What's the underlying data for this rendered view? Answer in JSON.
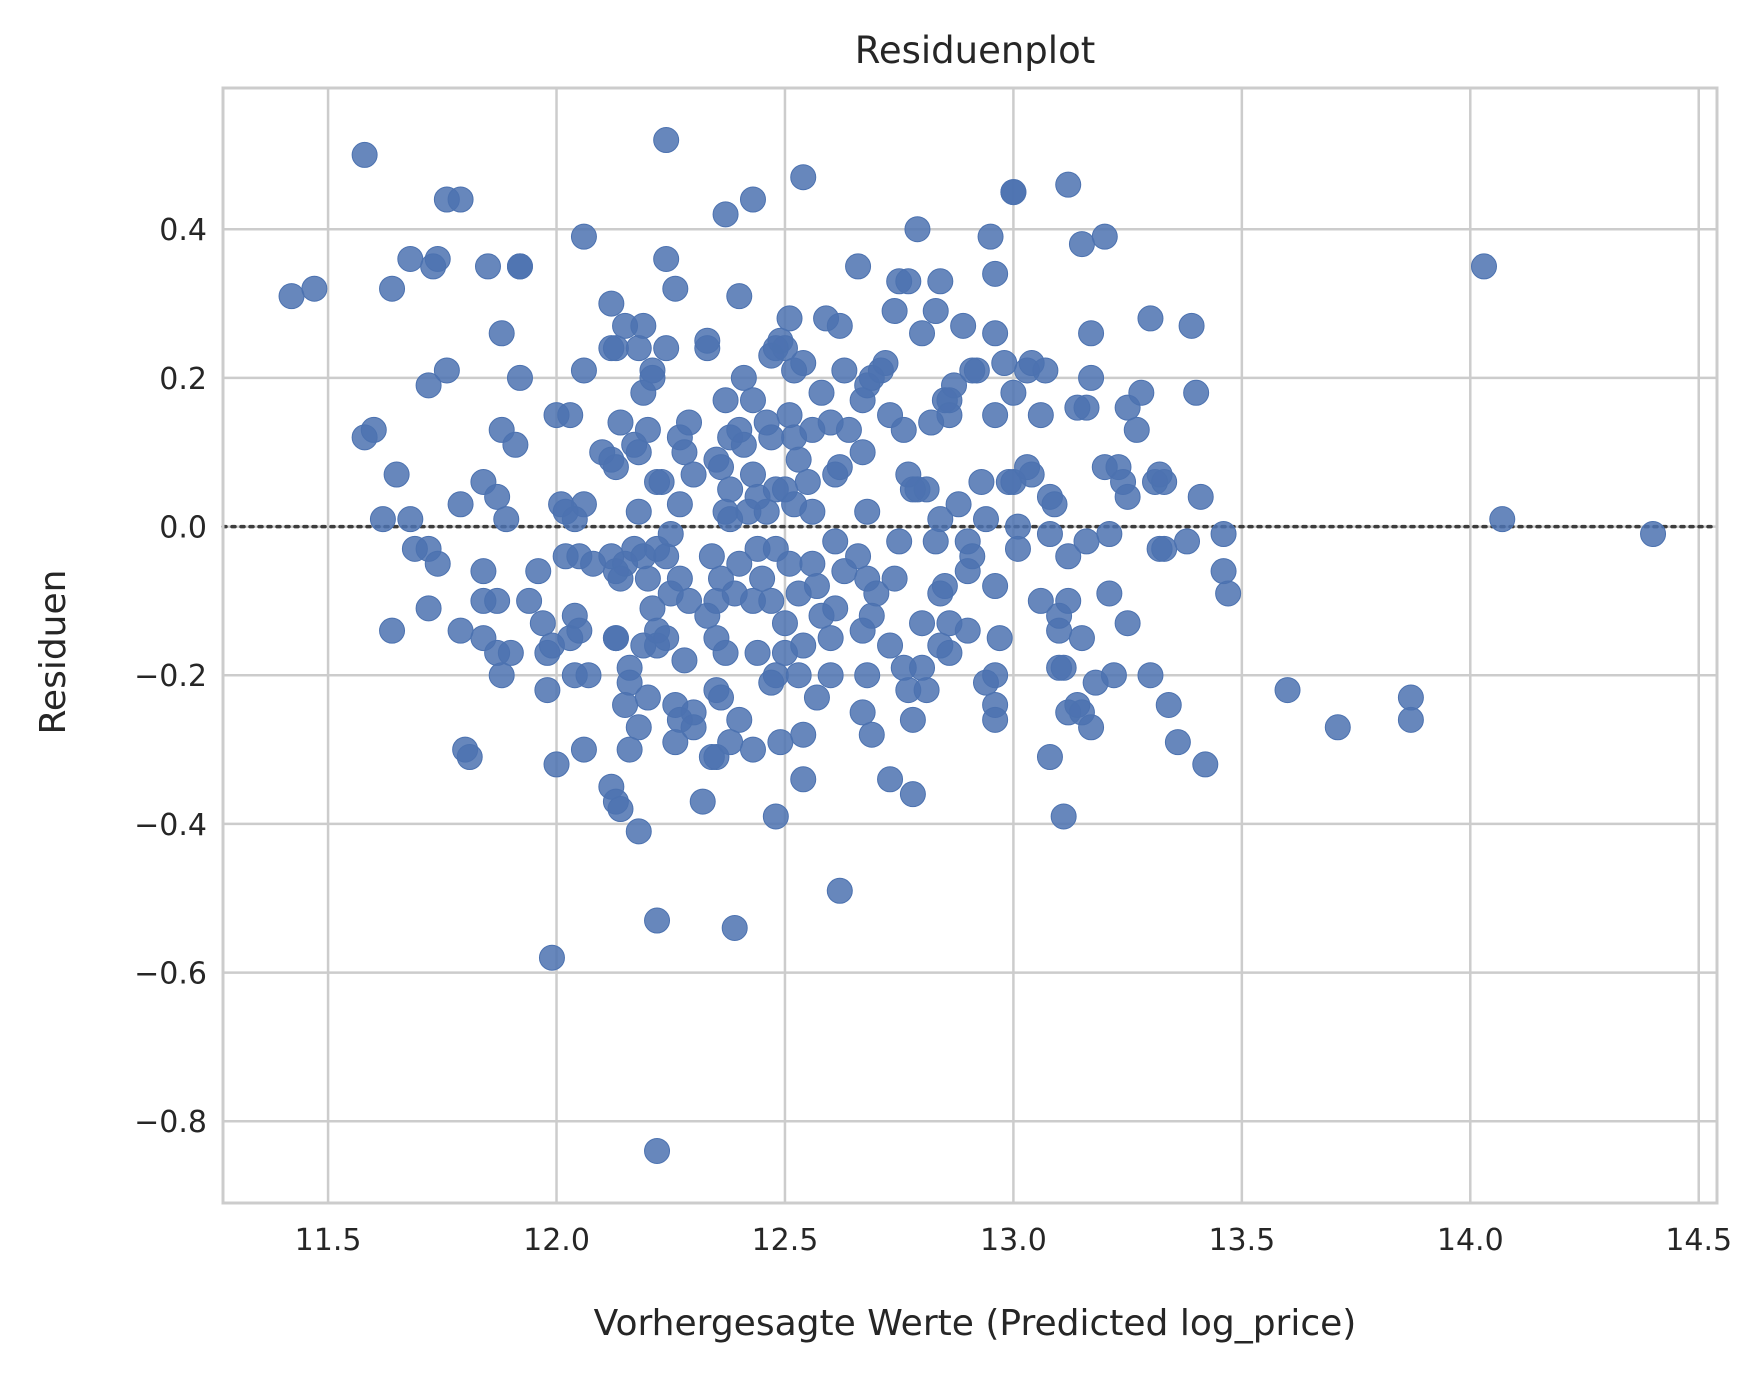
{
  "chart_data": {
    "type": "scatter",
    "title": "Residuenplot",
    "xlabel": "Vorhergesagte Werte (Predicted log_price)",
    "ylabel": "Residuen",
    "xlim": [
      11.27,
      14.54
    ],
    "ylim": [
      -0.91,
      0.59
    ],
    "xticks": [
      11.5,
      12.0,
      12.5,
      13.0,
      13.5,
      14.0,
      14.5
    ],
    "xtick_labels": [
      "11.5",
      "12.0",
      "12.5",
      "13.0",
      "13.5",
      "14.0",
      "14.5"
    ],
    "yticks": [
      -0.8,
      -0.6,
      -0.4,
      -0.2,
      0.0,
      0.2,
      0.4
    ],
    "ytick_labels": [
      "−0.8",
      "−0.6",
      "−0.4",
      "−0.2",
      "0.0",
      "0.2",
      "0.4"
    ],
    "grid": true,
    "reference_line": {
      "y": 0.0,
      "style": "dotted",
      "color": "#3d3d3d"
    },
    "point_color": "#4c72b0",
    "points": [
      [
        11.58,
        0.5
      ],
      [
        11.42,
        0.31
      ],
      [
        11.47,
        0.32
      ],
      [
        11.76,
        0.44
      ],
      [
        11.79,
        0.44
      ],
      [
        11.68,
        0.36
      ],
      [
        11.73,
        0.35
      ],
      [
        11.74,
        0.36
      ],
      [
        11.64,
        0.32
      ],
      [
        11.85,
        0.35
      ],
      [
        11.92,
        0.35
      ],
      [
        11.92,
        0.35
      ],
      [
        11.88,
        0.26
      ],
      [
        11.76,
        0.21
      ],
      [
        11.72,
        0.19
      ],
      [
        11.92,
        0.2
      ],
      [
        11.58,
        0.12
      ],
      [
        11.6,
        0.13
      ],
      [
        11.88,
        0.13
      ],
      [
        11.91,
        0.11
      ],
      [
        11.65,
        0.07
      ],
      [
        11.84,
        0.06
      ],
      [
        11.87,
        0.04
      ],
      [
        11.79,
        0.03
      ],
      [
        11.89,
        0.01
      ],
      [
        11.62,
        0.01
      ],
      [
        11.68,
        0.01
      ],
      [
        11.69,
        -0.03
      ],
      [
        11.72,
        -0.03
      ],
      [
        11.74,
        -0.05
      ],
      [
        11.84,
        -0.06
      ],
      [
        11.84,
        -0.1
      ],
      [
        11.87,
        -0.1
      ],
      [
        11.72,
        -0.11
      ],
      [
        11.79,
        -0.14
      ],
      [
        11.64,
        -0.14
      ],
      [
        11.84,
        -0.15
      ],
      [
        11.87,
        -0.17
      ],
      [
        11.9,
        -0.17
      ],
      [
        11.88,
        -0.2
      ],
      [
        11.8,
        -0.3
      ],
      [
        11.81,
        -0.31
      ],
      [
        11.98,
        -0.22
      ],
      [
        11.98,
        -0.17
      ],
      [
        11.99,
        -0.16
      ],
      [
        12.03,
        -0.15
      ],
      [
        12.04,
        -0.12
      ],
      [
        12.05,
        -0.14
      ],
      [
        11.97,
        -0.13
      ],
      [
        11.94,
        -0.1
      ],
      [
        11.96,
        -0.06
      ],
      [
        12.0,
        -0.32
      ],
      [
        12.06,
        -0.3
      ],
      [
        12.04,
        -0.2
      ],
      [
        12.07,
        -0.2
      ],
      [
        11.99,
        -0.58
      ],
      [
        12.06,
        0.39
      ],
      [
        12.06,
        0.21
      ],
      [
        12.0,
        0.15
      ],
      [
        12.03,
        0.15
      ],
      [
        12.01,
        0.03
      ],
      [
        12.02,
        0.02
      ],
      [
        12.06,
        0.03
      ],
      [
        12.04,
        0.01
      ],
      [
        12.02,
        -0.04
      ],
      [
        12.05,
        -0.04
      ],
      [
        12.08,
        -0.05
      ],
      [
        12.1,
        0.1
      ],
      [
        12.12,
        0.09
      ],
      [
        12.12,
        0.3
      ],
      [
        12.12,
        0.24
      ],
      [
        12.13,
        0.24
      ],
      [
        12.15,
        0.27
      ],
      [
        12.19,
        0.27
      ],
      [
        12.14,
        0.14
      ],
      [
        12.17,
        0.11
      ],
      [
        12.13,
        0.08
      ],
      [
        12.12,
        -0.04
      ],
      [
        12.13,
        -0.06
      ],
      [
        12.15,
        -0.05
      ],
      [
        12.14,
        -0.07
      ],
      [
        12.13,
        -0.15
      ],
      [
        12.13,
        -0.15
      ],
      [
        12.16,
        -0.19
      ],
      [
        12.16,
        -0.21
      ],
      [
        12.15,
        -0.24
      ],
      [
        12.12,
        -0.35
      ],
      [
        12.13,
        -0.37
      ],
      [
        12.14,
        -0.38
      ],
      [
        12.16,
        -0.3
      ],
      [
        12.18,
        -0.41
      ],
      [
        12.18,
        0.24
      ],
      [
        12.19,
        0.18
      ],
      [
        12.21,
        0.21
      ],
      [
        12.21,
        0.2
      ],
      [
        12.18,
        0.1
      ],
      [
        12.2,
        0.13
      ],
      [
        12.18,
        0.02
      ],
      [
        12.17,
        -0.03
      ],
      [
        12.19,
        -0.04
      ],
      [
        12.2,
        -0.07
      ],
      [
        12.21,
        -0.11
      ],
      [
        12.19,
        -0.16
      ],
      [
        12.22,
        -0.16
      ],
      [
        12.2,
        -0.23
      ],
      [
        12.18,
        -0.27
      ],
      [
        12.22,
        -0.14
      ],
      [
        12.24,
        -0.15
      ],
      [
        12.24,
        0.52
      ],
      [
        12.24,
        0.36
      ],
      [
        12.24,
        0.24
      ],
      [
        12.26,
        0.32
      ],
      [
        12.27,
        0.12
      ],
      [
        12.28,
        0.1
      ],
      [
        12.29,
        0.14
      ],
      [
        12.3,
        0.07
      ],
      [
        12.22,
        0.06
      ],
      [
        12.23,
        0.06
      ],
      [
        12.27,
        0.03
      ],
      [
        12.25,
        -0.01
      ],
      [
        12.24,
        -0.04
      ],
      [
        12.22,
        -0.03
      ],
      [
        12.25,
        -0.09
      ],
      [
        12.27,
        -0.07
      ],
      [
        12.29,
        -0.1
      ],
      [
        12.28,
        -0.18
      ],
      [
        12.26,
        -0.24
      ],
      [
        12.27,
        -0.26
      ],
      [
        12.26,
        -0.29
      ],
      [
        12.3,
        -0.25
      ],
      [
        12.3,
        -0.27
      ],
      [
        12.32,
        -0.37
      ],
      [
        12.22,
        -0.53
      ],
      [
        12.22,
        -0.84
      ],
      [
        12.33,
        0.24
      ],
      [
        12.33,
        0.25
      ],
      [
        12.37,
        0.42
      ],
      [
        12.4,
        0.31
      ],
      [
        12.37,
        0.17
      ],
      [
        12.38,
        0.12
      ],
      [
        12.4,
        0.13
      ],
      [
        12.35,
        0.09
      ],
      [
        12.36,
        0.08
      ],
      [
        12.38,
        0.05
      ],
      [
        12.37,
        0.02
      ],
      [
        12.38,
        0.01
      ],
      [
        12.34,
        -0.04
      ],
      [
        12.36,
        -0.07
      ],
      [
        12.39,
        -0.09
      ],
      [
        12.4,
        -0.05
      ],
      [
        12.35,
        -0.1
      ],
      [
        12.33,
        -0.12
      ],
      [
        12.35,
        -0.15
      ],
      [
        12.37,
        -0.17
      ],
      [
        12.35,
        -0.22
      ],
      [
        12.36,
        -0.23
      ],
      [
        12.34,
        -0.31
      ],
      [
        12.35,
        -0.31
      ],
      [
        12.38,
        -0.29
      ],
      [
        12.4,
        -0.26
      ],
      [
        12.39,
        -0.54
      ],
      [
        12.43,
        0.44
      ],
      [
        12.41,
        0.2
      ],
      [
        12.43,
        0.17
      ],
      [
        12.41,
        0.11
      ],
      [
        12.43,
        0.07
      ],
      [
        12.44,
        0.04
      ],
      [
        12.42,
        0.02
      ],
      [
        12.44,
        -0.03
      ],
      [
        12.45,
        -0.07
      ],
      [
        12.43,
        -0.1
      ],
      [
        12.44,
        -0.17
      ],
      [
        12.43,
        -0.3
      ],
      [
        12.47,
        0.23
      ],
      [
        12.48,
        0.24
      ],
      [
        12.49,
        0.25
      ],
      [
        12.46,
        0.14
      ],
      [
        12.47,
        0.12
      ],
      [
        12.48,
        0.05
      ],
      [
        12.46,
        0.02
      ],
      [
        12.48,
        -0.03
      ],
      [
        12.47,
        -0.1
      ],
      [
        12.48,
        -0.2
      ],
      [
        12.47,
        -0.21
      ],
      [
        12.48,
        -0.39
      ],
      [
        12.49,
        -0.29
      ],
      [
        12.51,
        0.28
      ],
      [
        12.5,
        0.24
      ],
      [
        12.52,
        0.21
      ],
      [
        12.51,
        0.15
      ],
      [
        12.52,
        0.12
      ],
      [
        12.53,
        0.09
      ],
      [
        12.5,
        0.05
      ],
      [
        12.52,
        0.03
      ],
      [
        12.51,
        -0.05
      ],
      [
        12.53,
        -0.09
      ],
      [
        12.5,
        -0.13
      ],
      [
        12.5,
        -0.17
      ],
      [
        12.54,
        -0.16
      ],
      [
        12.53,
        -0.2
      ],
      [
        12.54,
        -0.28
      ],
      [
        12.54,
        -0.34
      ],
      [
        12.54,
        0.47
      ],
      [
        12.54,
        0.22
      ],
      [
        12.56,
        0.13
      ],
      [
        12.55,
        0.06
      ],
      [
        12.56,
        0.02
      ],
      [
        12.56,
        -0.05
      ],
      [
        12.57,
        -0.08
      ],
      [
        12.58,
        -0.12
      ],
      [
        12.57,
        -0.23
      ],
      [
        12.59,
        0.28
      ],
      [
        12.58,
        0.18
      ],
      [
        12.6,
        0.14
      ],
      [
        12.61,
        0.07
      ],
      [
        12.62,
        0.27
      ],
      [
        12.63,
        0.21
      ],
      [
        12.64,
        0.13
      ],
      [
        12.62,
        0.08
      ],
      [
        12.61,
        -0.02
      ],
      [
        12.63,
        -0.06
      ],
      [
        12.61,
        -0.11
      ],
      [
        12.6,
        -0.15
      ],
      [
        12.6,
        -0.2
      ],
      [
        12.62,
        -0.49
      ],
      [
        12.66,
        0.35
      ],
      [
        12.67,
        0.17
      ],
      [
        12.68,
        0.19
      ],
      [
        12.69,
        0.2
      ],
      [
        12.67,
        0.1
      ],
      [
        12.68,
        0.02
      ],
      [
        12.66,
        -0.04
      ],
      [
        12.68,
        -0.07
      ],
      [
        12.69,
        -0.12
      ],
      [
        12.67,
        -0.14
      ],
      [
        12.68,
        -0.2
      ],
      [
        12.67,
        -0.25
      ],
      [
        12.69,
        -0.28
      ],
      [
        12.7,
        -0.09
      ],
      [
        12.71,
        0.21
      ],
      [
        12.72,
        0.22
      ],
      [
        12.73,
        0.15
      ],
      [
        12.74,
        0.29
      ],
      [
        12.75,
        0.33
      ],
      [
        12.77,
        0.33
      ],
      [
        12.76,
        0.13
      ],
      [
        12.78,
        0.05
      ],
      [
        12.77,
        0.07
      ],
      [
        12.75,
        -0.02
      ],
      [
        12.74,
        -0.07
      ],
      [
        12.73,
        -0.16
      ],
      [
        12.76,
        -0.19
      ],
      [
        12.77,
        -0.22
      ],
      [
        12.78,
        -0.26
      ],
      [
        12.73,
        -0.34
      ],
      [
        12.78,
        -0.36
      ],
      [
        12.79,
        0.4
      ],
      [
        12.8,
        0.26
      ],
      [
        12.79,
        0.05
      ],
      [
        12.81,
        0.05
      ],
      [
        12.8,
        -0.13
      ],
      [
        12.8,
        -0.19
      ],
      [
        12.81,
        -0.22
      ],
      [
        12.82,
        0.14
      ],
      [
        12.83,
        0.29
      ],
      [
        12.84,
        0.33
      ],
      [
        12.86,
        0.17
      ],
      [
        12.85,
        0.17
      ],
      [
        12.86,
        0.15
      ],
      [
        12.84,
        0.01
      ],
      [
        12.83,
        -0.02
      ],
      [
        12.85,
        -0.08
      ],
      [
        12.84,
        -0.09
      ],
      [
        12.86,
        -0.13
      ],
      [
        12.86,
        -0.17
      ],
      [
        12.84,
        -0.16
      ],
      [
        12.87,
        0.19
      ],
      [
        12.88,
        0.03
      ],
      [
        12.89,
        0.27
      ],
      [
        12.91,
        0.21
      ],
      [
        12.92,
        0.21
      ],
      [
        12.9,
        -0.02
      ],
      [
        12.91,
        -0.04
      ],
      [
        12.9,
        -0.06
      ],
      [
        12.9,
        -0.14
      ],
      [
        12.93,
        0.06
      ],
      [
        12.94,
        0.01
      ],
      [
        12.95,
        0.39
      ],
      [
        12.96,
        0.34
      ],
      [
        12.96,
        0.26
      ],
      [
        12.96,
        0.15
      ],
      [
        12.94,
        -0.21
      ],
      [
        12.96,
        -0.2
      ],
      [
        12.96,
        -0.24
      ],
      [
        12.96,
        -0.26
      ],
      [
        12.96,
        -0.08
      ],
      [
        12.97,
        -0.15
      ],
      [
        12.98,
        0.22
      ],
      [
        13.0,
        0.45
      ],
      [
        13.0,
        0.45
      ],
      [
        13.0,
        0.18
      ],
      [
        12.99,
        0.06
      ],
      [
        13.0,
        0.06
      ],
      [
        13.01,
        0.0
      ],
      [
        13.01,
        -0.03
      ],
      [
        13.03,
        0.21
      ],
      [
        13.04,
        0.22
      ],
      [
        13.03,
        0.08
      ],
      [
        13.04,
        0.07
      ],
      [
        13.06,
        0.15
      ],
      [
        13.07,
        0.21
      ],
      [
        13.06,
        -0.1
      ],
      [
        13.08,
        0.04
      ],
      [
        13.09,
        0.03
      ],
      [
        13.08,
        -0.01
      ],
      [
        13.1,
        -0.14
      ],
      [
        13.1,
        -0.12
      ],
      [
        13.1,
        -0.19
      ],
      [
        13.08,
        -0.31
      ],
      [
        13.11,
        -0.39
      ],
      [
        13.12,
        0.46
      ],
      [
        13.15,
        0.38
      ],
      [
        13.12,
        -0.04
      ],
      [
        13.12,
        -0.1
      ],
      [
        13.11,
        -0.19
      ],
      [
        13.12,
        -0.25
      ],
      [
        13.14,
        -0.24
      ],
      [
        13.15,
        -0.25
      ],
      [
        13.17,
        0.26
      ],
      [
        13.17,
        0.2
      ],
      [
        13.16,
        0.16
      ],
      [
        13.14,
        0.16
      ],
      [
        13.16,
        -0.02
      ],
      [
        13.15,
        -0.15
      ],
      [
        13.17,
        -0.27
      ],
      [
        13.18,
        -0.21
      ],
      [
        13.2,
        0.39
      ],
      [
        13.2,
        0.08
      ],
      [
        13.21,
        -0.01
      ],
      [
        13.21,
        -0.09
      ],
      [
        13.22,
        -0.2
      ],
      [
        13.23,
        0.08
      ],
      [
        13.24,
        0.06
      ],
      [
        13.25,
        0.04
      ],
      [
        13.25,
        0.16
      ],
      [
        13.25,
        -0.13
      ],
      [
        13.27,
        0.13
      ],
      [
        13.28,
        0.18
      ],
      [
        13.3,
        0.28
      ],
      [
        13.31,
        0.06
      ],
      [
        13.32,
        0.07
      ],
      [
        13.33,
        0.06
      ],
      [
        13.32,
        -0.03
      ],
      [
        13.33,
        -0.03
      ],
      [
        13.3,
        -0.2
      ],
      [
        13.34,
        -0.24
      ],
      [
        13.36,
        -0.29
      ],
      [
        13.38,
        -0.02
      ],
      [
        13.39,
        0.27
      ],
      [
        13.4,
        0.18
      ],
      [
        13.41,
        0.04
      ],
      [
        13.42,
        -0.32
      ],
      [
        13.46,
        -0.01
      ],
      [
        13.46,
        -0.06
      ],
      [
        13.47,
        -0.09
      ],
      [
        13.6,
        -0.22
      ],
      [
        13.71,
        -0.27
      ],
      [
        13.87,
        -0.23
      ],
      [
        13.87,
        -0.26
      ],
      [
        14.03,
        0.35
      ],
      [
        14.07,
        0.01
      ],
      [
        14.4,
        -0.01
      ]
    ]
  }
}
